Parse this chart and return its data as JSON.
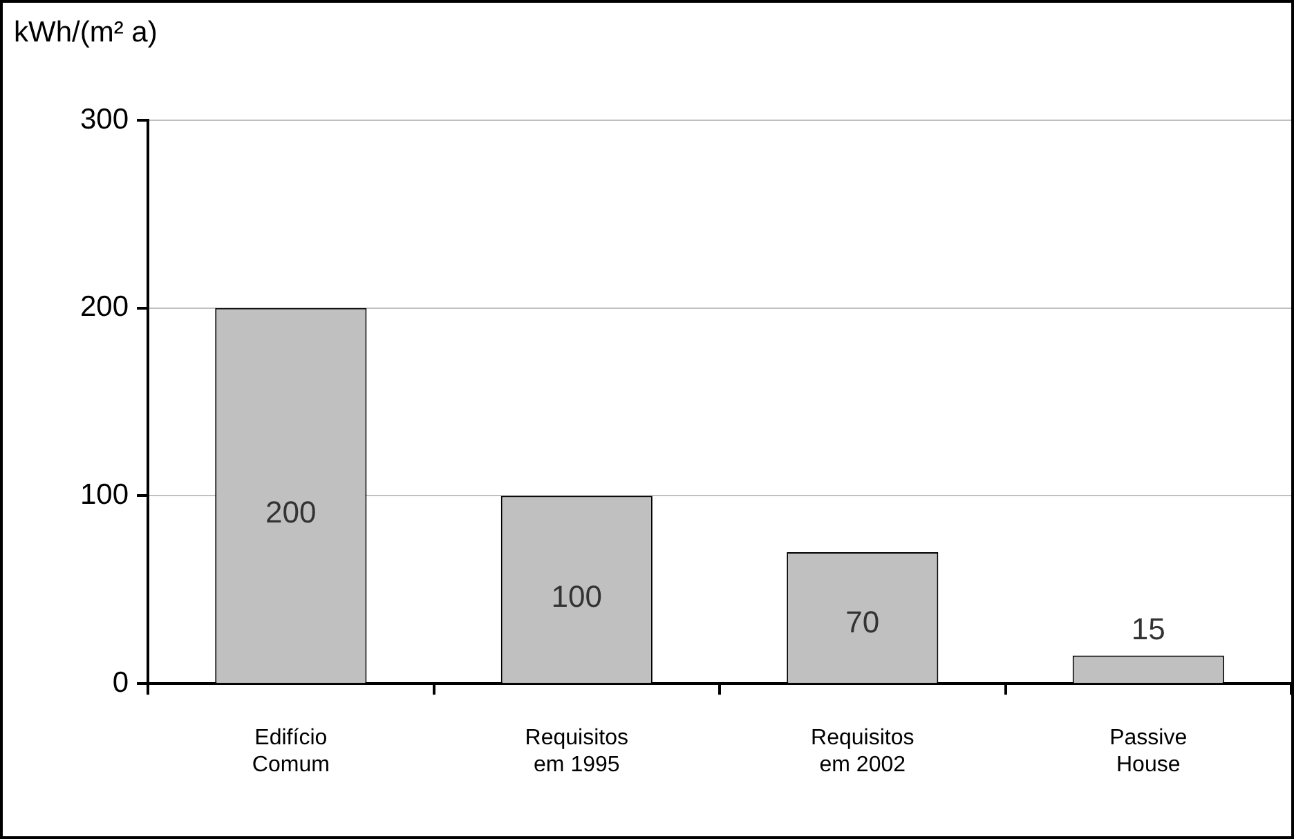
{
  "chart_data": {
    "type": "bar",
    "ylabel": "kWh/(m² a)",
    "categories": [
      "Edifício Comum",
      "Requisitos em 1995",
      "Requisitos em 2002",
      "Passive House"
    ],
    "values": [
      200,
      100,
      70,
      15
    ],
    "color": "#c0c0c0",
    "ylim": [
      0,
      300
    ],
    "yticks": [
      0,
      100,
      200,
      300
    ],
    "grid": "y",
    "data_labels": true,
    "legend": false
  }
}
